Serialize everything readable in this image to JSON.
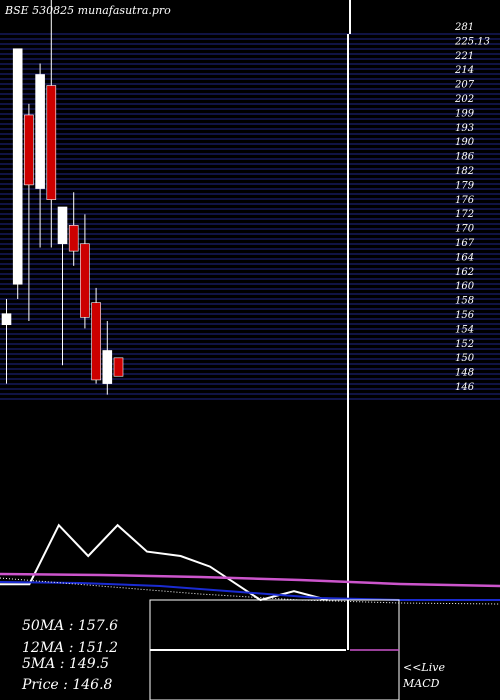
{
  "chart_data": {
    "type": "candlestick",
    "title": "BSE 530825 munafasutra.pro",
    "colors": {
      "background": "#000000",
      "grid": "#1a1f6e",
      "up_candle": "#ffffff",
      "down_candle": "#cc0000",
      "price_line": "#ffffff",
      "ma_long": "#cc55cc",
      "ma_short": "#1a2bd1",
      "ma_dotted": "#ffffff"
    },
    "price_axis_ticks": [
      "281",
      "225.13",
      "221",
      "214",
      "207",
      "202",
      "199",
      "193",
      "190",
      "186",
      "182",
      "179",
      "176",
      "172",
      "170",
      "167",
      "164",
      "162",
      "160",
      "158",
      "156",
      "154",
      "152",
      "150",
      "148",
      "146"
    ],
    "candles": [
      {
        "open": 161,
        "high": 168,
        "low": 145,
        "close": 164
      },
      {
        "open": 172,
        "high": 236,
        "low": 168,
        "close": 236
      },
      {
        "open": 218,
        "high": 221,
        "low": 162,
        "close": 199
      },
      {
        "open": 198,
        "high": 232,
        "low": 182,
        "close": 229
      },
      {
        "open": 226,
        "high": 276,
        "low": 182,
        "close": 195
      },
      {
        "open": 183,
        "high": 193,
        "low": 150,
        "close": 193
      },
      {
        "open": 188,
        "high": 197,
        "low": 177,
        "close": 181
      },
      {
        "open": 183,
        "high": 191,
        "low": 160,
        "close": 163
      },
      {
        "open": 167,
        "high": 171,
        "low": 145,
        "close": 146
      },
      {
        "open": 145,
        "high": 162,
        "low": 142,
        "close": 154
      },
      {
        "open": 152,
        "high": 152,
        "low": 147,
        "close": 147
      }
    ],
    "indicators": [
      {
        "label": "50MA",
        "value": "157.6"
      },
      {
        "label": "12MA",
        "value": "151.2"
      },
      {
        "label": "5MA",
        "value": "149.5"
      },
      {
        "label": "Price",
        "value": "146.8"
      }
    ],
    "volume_like_series": [
      {
        "x": 0,
        "y": 0.18
      },
      {
        "x": 0.07,
        "y": 0.18
      },
      {
        "x": 0.14,
        "y": 0.85
      },
      {
        "x": 0.21,
        "y": 0.5
      },
      {
        "x": 0.28,
        "y": 0.85
      },
      {
        "x": 0.35,
        "y": 0.55
      },
      {
        "x": 0.43,
        "y": 0.5
      },
      {
        "x": 0.5,
        "y": 0.38
      },
      {
        "x": 0.62,
        "y": 0.0
      },
      {
        "x": 0.7,
        "y": 0.1
      },
      {
        "x": 0.78,
        "y": 0.0
      }
    ],
    "live_label": "<<Live",
    "macd_label": "MACD"
  }
}
